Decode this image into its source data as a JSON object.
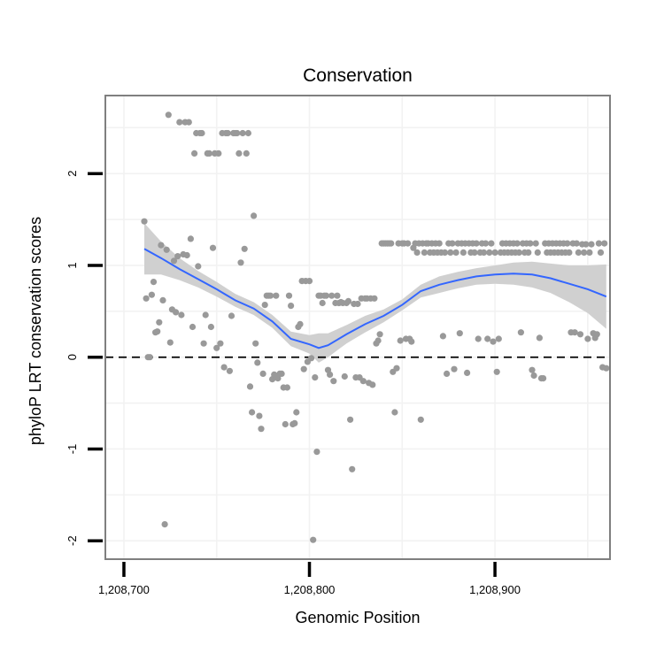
{
  "chart_data": {
    "type": "scatter",
    "title": "Conservation",
    "xlabel": "Genomic Position",
    "ylabel": "phyloP LRT conservation scores",
    "xlim": [
      1208690,
      1208962
    ],
    "ylim": [
      -2.2,
      2.85
    ],
    "x_ticks": [
      1208700,
      1208800,
      1208900
    ],
    "x_tick_labels": [
      "1,208,700",
      "1,208,800",
      "1,208,900"
    ],
    "y_ticks": [
      -2,
      -1,
      0,
      1,
      2
    ],
    "y_tick_labels": [
      "-2",
      "-1",
      "0",
      "1",
      "2"
    ],
    "grid": true,
    "reference_line": {
      "y": 0,
      "style": "dashed"
    },
    "colors": {
      "points": "#999999",
      "smooth": "#3366FF",
      "band": "#d0d0d0",
      "grid": "#f2f2f2",
      "frame": "#7f7f7f"
    },
    "points": [
      [
        1208711,
        1.48
      ],
      [
        1208712,
        0.64
      ],
      [
        1208713,
        0.0
      ],
      [
        1208714,
        0.0
      ],
      [
        1208715,
        0.68
      ],
      [
        1208716,
        0.82
      ],
      [
        1208717,
        0.27
      ],
      [
        1208718,
        0.28
      ],
      [
        1208719,
        0.38
      ],
      [
        1208720,
        1.22
      ],
      [
        1208721,
        0.62
      ],
      [
        1208722,
        -1.82
      ],
      [
        1208723,
        1.17
      ],
      [
        1208724,
        2.64
      ],
      [
        1208725,
        0.16
      ],
      [
        1208726,
        0.52
      ],
      [
        1208727,
        1.05
      ],
      [
        1208728,
        0.49
      ],
      [
        1208729,
        1.1
      ],
      [
        1208730,
        2.56
      ],
      [
        1208731,
        0.46
      ],
      [
        1208732,
        1.12
      ],
      [
        1208733,
        2.56
      ],
      [
        1208734,
        1.11
      ],
      [
        1208735,
        2.56
      ],
      [
        1208736,
        1.29
      ],
      [
        1208737,
        0.33
      ],
      [
        1208738,
        2.22
      ],
      [
        1208739,
        2.44
      ],
      [
        1208740,
        0.99
      ],
      [
        1208741,
        2.44
      ],
      [
        1208742,
        2.44
      ],
      [
        1208743,
        0.15
      ],
      [
        1208744,
        0.46
      ],
      [
        1208745,
        2.22
      ],
      [
        1208746,
        2.22
      ],
      [
        1208747,
        0.33
      ],
      [
        1208748,
        1.19
      ],
      [
        1208749,
        2.22
      ],
      [
        1208750,
        0.1
      ],
      [
        1208751,
        2.22
      ],
      [
        1208752,
        0.15
      ],
      [
        1208753,
        2.44
      ],
      [
        1208754,
        -0.11
      ],
      [
        1208755,
        2.44
      ],
      [
        1208756,
        2.44
      ],
      [
        1208757,
        -0.15
      ],
      [
        1208758,
        0.45
      ],
      [
        1208759,
        2.44
      ],
      [
        1208760,
        2.44
      ],
      [
        1208761,
        2.44
      ],
      [
        1208762,
        2.22
      ],
      [
        1208763,
        1.03
      ],
      [
        1208764,
        2.44
      ],
      [
        1208765,
        1.18
      ],
      [
        1208766,
        2.22
      ],
      [
        1208767,
        2.44
      ],
      [
        1208768,
        -0.32
      ],
      [
        1208769,
        -0.6
      ],
      [
        1208770,
        1.54
      ],
      [
        1208771,
        0.15
      ],
      [
        1208772,
        -0.06
      ],
      [
        1208773,
        -0.64
      ],
      [
        1208774,
        -0.78
      ],
      [
        1208775,
        -0.18
      ],
      [
        1208776,
        0.57
      ],
      [
        1208777,
        0.67
      ],
      [
        1208778,
        0.67
      ],
      [
        1208779,
        0.67
      ],
      [
        1208780,
        -0.24
      ],
      [
        1208781,
        -0.19
      ],
      [
        1208782,
        0.67
      ],
      [
        1208783,
        -0.23
      ],
      [
        1208784,
        -0.18
      ],
      [
        1208785,
        -0.18
      ],
      [
        1208786,
        -0.33
      ],
      [
        1208787,
        -0.73
      ],
      [
        1208788,
        -0.33
      ],
      [
        1208789,
        0.67
      ],
      [
        1208790,
        0.56
      ],
      [
        1208791,
        -0.73
      ],
      [
        1208792,
        -0.72
      ],
      [
        1208793,
        -0.6
      ],
      [
        1208794,
        0.33
      ],
      [
        1208795,
        0.36
      ],
      [
        1208796,
        0.83
      ],
      [
        1208797,
        -0.13
      ],
      [
        1208798,
        0.83
      ],
      [
        1208799,
        -0.05
      ],
      [
        1208800,
        0.83
      ],
      [
        1208801,
        -0.01
      ],
      [
        1208802,
        -1.99
      ],
      [
        1208803,
        -0.22
      ],
      [
        1208804,
        -1.03
      ],
      [
        1208805,
        0.67
      ],
      [
        1208806,
        0.67
      ],
      [
        1208807,
        0.59
      ],
      [
        1208808,
        0.67
      ],
      [
        1208809,
        0.67
      ],
      [
        1208810,
        -0.14
      ],
      [
        1208811,
        -0.19
      ],
      [
        1208812,
        0.67
      ],
      [
        1208813,
        -0.26
      ],
      [
        1208814,
        0.59
      ],
      [
        1208815,
        0.67
      ],
      [
        1208816,
        0.59
      ],
      [
        1208817,
        0.6
      ],
      [
        1208818,
        0.59
      ],
      [
        1208819,
        -0.21
      ],
      [
        1208820,
        0.59
      ],
      [
        1208821,
        0.61
      ],
      [
        1208822,
        -0.68
      ],
      [
        1208823,
        -1.22
      ],
      [
        1208824,
        0.58
      ],
      [
        1208825,
        -0.22
      ],
      [
        1208826,
        0.58
      ],
      [
        1208827,
        -0.22
      ],
      [
        1208828,
        0.64
      ],
      [
        1208829,
        -0.26
      ],
      [
        1208830,
        0.64
      ],
      [
        1208831,
        0.64
      ],
      [
        1208832,
        -0.28
      ],
      [
        1208833,
        0.64
      ],
      [
        1208834,
        -0.3
      ],
      [
        1208835,
        0.64
      ],
      [
        1208836,
        0.15
      ],
      [
        1208837,
        0.18
      ],
      [
        1208838,
        0.25
      ],
      [
        1208839,
        1.24
      ],
      [
        1208840,
        1.24
      ],
      [
        1208841,
        1.24
      ],
      [
        1208842,
        1.24
      ],
      [
        1208843,
        1.24
      ],
      [
        1208844,
        1.24
      ],
      [
        1208845,
        -0.16
      ],
      [
        1208846,
        -0.6
      ],
      [
        1208847,
        -0.12
      ],
      [
        1208848,
        1.24
      ],
      [
        1208849,
        0.18
      ],
      [
        1208850,
        1.24
      ],
      [
        1208851,
        1.24
      ],
      [
        1208852,
        0.2
      ],
      [
        1208853,
        1.24
      ],
      [
        1208854,
        0.2
      ],
      [
        1208855,
        0.17
      ],
      [
        1208856,
        1.19
      ],
      [
        1208857,
        1.24
      ],
      [
        1208858,
        1.14
      ],
      [
        1208859,
        1.24
      ],
      [
        1208860,
        -0.68
      ],
      [
        1208861,
        1.24
      ],
      [
        1208862,
        1.14
      ],
      [
        1208863,
        1.24
      ],
      [
        1208864,
        1.24
      ],
      [
        1208865,
        1.14
      ],
      [
        1208866,
        1.24
      ],
      [
        1208867,
        1.14
      ],
      [
        1208868,
        1.24
      ],
      [
        1208869,
        1.14
      ],
      [
        1208870,
        1.24
      ],
      [
        1208871,
        1.14
      ],
      [
        1208872,
        0.23
      ],
      [
        1208873,
        1.14
      ],
      [
        1208874,
        -0.18
      ],
      [
        1208875,
        1.24
      ],
      [
        1208876,
        1.14
      ],
      [
        1208877,
        1.24
      ],
      [
        1208878,
        -0.13
      ],
      [
        1208879,
        1.14
      ],
      [
        1208880,
        1.24
      ],
      [
        1208881,
        0.26
      ],
      [
        1208882,
        1.24
      ],
      [
        1208883,
        1.14
      ],
      [
        1208884,
        1.24
      ],
      [
        1208885,
        -0.17
      ],
      [
        1208886,
        1.24
      ],
      [
        1208887,
        1.14
      ],
      [
        1208888,
        1.24
      ],
      [
        1208889,
        1.14
      ],
      [
        1208890,
        1.24
      ],
      [
        1208891,
        0.2
      ],
      [
        1208892,
        1.14
      ],
      [
        1208893,
        1.24
      ],
      [
        1208894,
        1.14
      ],
      [
        1208895,
        1.24
      ],
      [
        1208896,
        0.2
      ],
      [
        1208897,
        1.14
      ],
      [
        1208898,
        1.24
      ],
      [
        1208899,
        0.17
      ],
      [
        1208900,
        1.14
      ],
      [
        1208901,
        -0.16
      ],
      [
        1208902,
        0.2
      ],
      [
        1208903,
        1.14
      ],
      [
        1208904,
        1.24
      ],
      [
        1208905,
        1.14
      ],
      [
        1208906,
        1.24
      ],
      [
        1208907,
        1.14
      ],
      [
        1208908,
        1.24
      ],
      [
        1208909,
        1.14
      ],
      [
        1208910,
        1.24
      ],
      [
        1208911,
        1.14
      ],
      [
        1208912,
        1.24
      ],
      [
        1208913,
        1.14
      ],
      [
        1208914,
        0.27
      ],
      [
        1208915,
        1.24
      ],
      [
        1208916,
        1.14
      ],
      [
        1208917,
        1.24
      ],
      [
        1208918,
        1.14
      ],
      [
        1208919,
        1.24
      ],
      [
        1208920,
        -0.14
      ],
      [
        1208921,
        -0.2
      ],
      [
        1208922,
        1.24
      ],
      [
        1208923,
        1.14
      ],
      [
        1208924,
        0.21
      ],
      [
        1208925,
        -0.23
      ],
      [
        1208926,
        -0.23
      ],
      [
        1208927,
        1.24
      ],
      [
        1208928,
        1.14
      ],
      [
        1208929,
        1.24
      ],
      [
        1208930,
        1.14
      ],
      [
        1208931,
        1.24
      ],
      [
        1208932,
        1.14
      ],
      [
        1208933,
        1.24
      ],
      [
        1208934,
        1.14
      ],
      [
        1208935,
        1.24
      ],
      [
        1208936,
        1.14
      ],
      [
        1208937,
        1.24
      ],
      [
        1208938,
        1.14
      ],
      [
        1208939,
        1.24
      ],
      [
        1208940,
        1.14
      ],
      [
        1208941,
        0.27
      ],
      [
        1208942,
        1.24
      ],
      [
        1208943,
        0.27
      ],
      [
        1208944,
        1.24
      ],
      [
        1208945,
        1.14
      ],
      [
        1208946,
        0.25
      ],
      [
        1208947,
        1.23
      ],
      [
        1208948,
        1.14
      ],
      [
        1208949,
        1.23
      ],
      [
        1208950,
        0.2
      ],
      [
        1208951,
        1.14
      ],
      [
        1208952,
        1.23
      ],
      [
        1208953,
        0.26
      ],
      [
        1208954,
        0.21
      ],
      [
        1208955,
        0.25
      ],
      [
        1208956,
        1.24
      ],
      [
        1208957,
        1.14
      ],
      [
        1208958,
        -0.11
      ],
      [
        1208959,
        1.24
      ],
      [
        1208960,
        -0.12
      ]
    ],
    "smooth": {
      "x": [
        1208711,
        1208720,
        1208730,
        1208740,
        1208750,
        1208760,
        1208770,
        1208780,
        1208790,
        1208800,
        1208805,
        1208810,
        1208820,
        1208830,
        1208840,
        1208850,
        1208860,
        1208870,
        1208880,
        1208890,
        1208900,
        1208910,
        1208920,
        1208930,
        1208940,
        1208950,
        1208960
      ],
      "y": [
        1.18,
        1.08,
        0.96,
        0.85,
        0.74,
        0.62,
        0.53,
        0.39,
        0.2,
        0.14,
        0.1,
        0.13,
        0.25,
        0.36,
        0.45,
        0.57,
        0.72,
        0.79,
        0.84,
        0.88,
        0.9,
        0.91,
        0.9,
        0.86,
        0.8,
        0.74,
        0.66
      ],
      "lower": [
        0.9,
        0.9,
        0.84,
        0.76,
        0.66,
        0.55,
        0.46,
        0.32,
        0.12,
        0.04,
        -0.06,
        0.0,
        0.15,
        0.27,
        0.38,
        0.51,
        0.65,
        0.7,
        0.75,
        0.79,
        0.8,
        0.79,
        0.76,
        0.7,
        0.6,
        0.48,
        0.31
      ],
      "upper": [
        1.46,
        1.26,
        1.08,
        0.94,
        0.82,
        0.69,
        0.6,
        0.46,
        0.28,
        0.24,
        0.26,
        0.26,
        0.35,
        0.45,
        0.52,
        0.63,
        0.79,
        0.88,
        0.93,
        0.97,
        1.0,
        1.03,
        1.04,
        1.02,
        1.0,
        1.0,
        1.01
      ]
    }
  }
}
